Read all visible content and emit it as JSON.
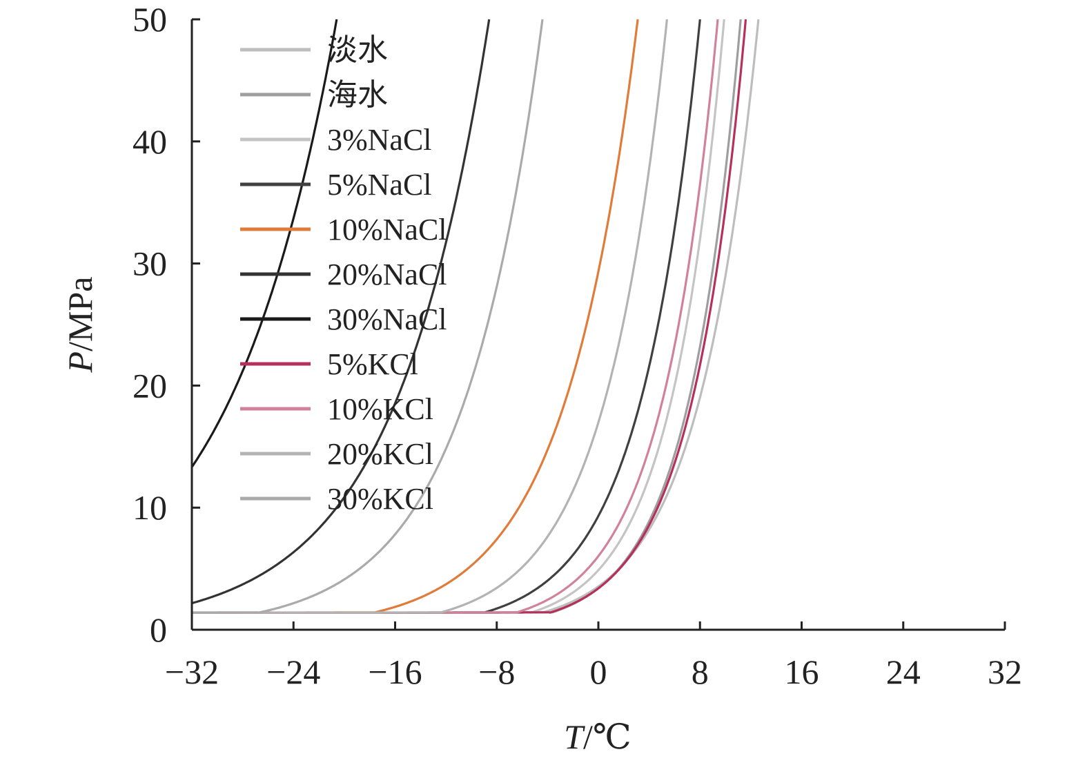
{
  "chart_data": {
    "type": "line",
    "title": "",
    "xlabel": {
      "symbol": "T",
      "unit": "/℃"
    },
    "ylabel": {
      "symbol": "P",
      "unit": "/MPa"
    },
    "xlim": [
      -32,
      32
    ],
    "ylim": [
      0,
      50
    ],
    "xticks": [
      "−32",
      "−24",
      "−16",
      "−8",
      "0",
      "8",
      "16",
      "24",
      "32"
    ],
    "yticks": [
      "0",
      "10",
      "20",
      "30",
      "40",
      "50"
    ],
    "grid": false,
    "legend_position": "top-left",
    "series": [
      {
        "name": "淡水",
        "color": "#bdbdbd",
        "T0": 12.6,
        "b": 0.21
      },
      {
        "name": "海水",
        "color": "#9e9e9e",
        "T0": 11.2,
        "b": 0.24
      },
      {
        "name": "3%NaCl",
        "color": "#c4c4c4",
        "T0": 9.9,
        "b": 0.235
      },
      {
        "name": "5%NaCl",
        "color": "#404040",
        "T0": 8.0,
        "b": 0.21
      },
      {
        "name": "10%NaCl",
        "color": "#e07b39",
        "T0": 3.1,
        "b": 0.172
      },
      {
        "name": "20%NaCl",
        "color": "#333333",
        "T0": -8.6,
        "b": 0.134
      },
      {
        "name": "30%NaCl",
        "color": "#1a1a1a",
        "T0": -20.6,
        "b": 0.116
      },
      {
        "name": "5%KCl",
        "color": "#b5305a",
        "T0": 11.6,
        "b": 0.232
      },
      {
        "name": "10%KCl",
        "color": "#d1829a",
        "T0": 9.4,
        "b": 0.225
      },
      {
        "name": "20%KCl",
        "color": "#b3b3b3",
        "T0": 5.4,
        "b": 0.2
      },
      {
        "name": "30%KCl",
        "color": "#aaaaaa",
        "T0": -4.4,
        "b": 0.16
      }
    ]
  }
}
